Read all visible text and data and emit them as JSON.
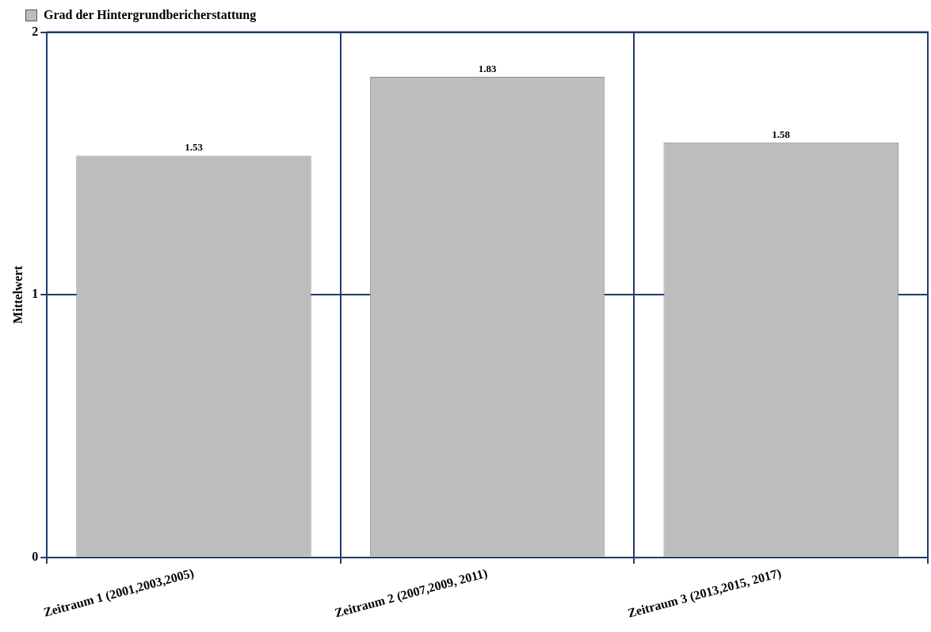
{
  "chart_data": {
    "type": "bar",
    "categories": [
      "Zeitraum 1 (2001,2003,2005)",
      "Zeitraum 2 (2007,2009, 2011)",
      "Zeitraum 3 (2013,2015, 2017)"
    ],
    "series": [
      {
        "name": "Grad der Hintergrundbericherstattung",
        "color": "#bdbdbd",
        "values": [
          1.53,
          1.83,
          1.58
        ]
      }
    ],
    "ylabel": "Mittelwert",
    "ylim": [
      0,
      2
    ],
    "yticks": [
      0,
      1,
      2
    ],
    "grid": true,
    "legend": "top left",
    "data_labels": true
  }
}
